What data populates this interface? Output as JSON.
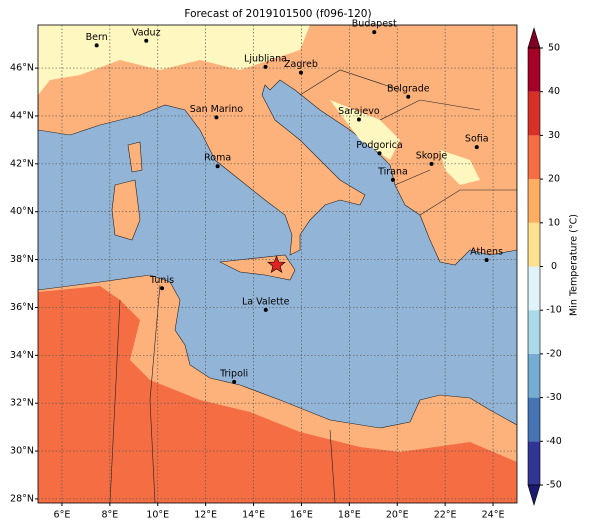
{
  "title": "Forecast of 2019101500 (f096-120)",
  "map": {
    "xlim": [
      5,
      25
    ],
    "ylim": [
      27.83,
      47.8
    ],
    "xticks": [
      {
        "value": 6,
        "label": "6°E"
      },
      {
        "value": 8,
        "label": "8°E"
      },
      {
        "value": 10,
        "label": "10°E"
      },
      {
        "value": 12,
        "label": "12°E"
      },
      {
        "value": 14,
        "label": "14°E"
      },
      {
        "value": 16,
        "label": "16°E"
      },
      {
        "value": 18,
        "label": "18°E"
      },
      {
        "value": 20,
        "label": "20°E"
      },
      {
        "value": 22,
        "label": "22°E"
      },
      {
        "value": 24,
        "label": "24°E"
      }
    ],
    "yticks": [
      {
        "value": 28,
        "label": "28°N"
      },
      {
        "value": 30,
        "label": "30°N"
      },
      {
        "value": 32,
        "label": "32°N"
      },
      {
        "value": 34,
        "label": "34°N"
      },
      {
        "value": 36,
        "label": "36°N"
      },
      {
        "value": 38,
        "label": "38°N"
      },
      {
        "value": 40,
        "label": "40°N"
      },
      {
        "value": 42,
        "label": "42°N"
      },
      {
        "value": 44,
        "label": "44°N"
      },
      {
        "value": 46,
        "label": "46°N"
      }
    ],
    "grid": true,
    "cities": [
      {
        "name": "Bern",
        "lon": 7.45,
        "lat": 46.95
      },
      {
        "name": "Vaduz",
        "lon": 9.52,
        "lat": 47.14
      },
      {
        "name": "Budapest",
        "lon": 19.04,
        "lat": 47.5
      },
      {
        "name": "Ljubljana",
        "lon": 14.5,
        "lat": 46.05
      },
      {
        "name": "Zagreb",
        "lon": 15.98,
        "lat": 45.81
      },
      {
        "name": "Belgrade",
        "lon": 20.46,
        "lat": 44.8
      },
      {
        "name": "San Marino",
        "lon": 12.45,
        "lat": 43.94
      },
      {
        "name": "Sarajevo",
        "lon": 18.4,
        "lat": 43.85
      },
      {
        "name": "Sofia",
        "lon": 23.32,
        "lat": 42.7
      },
      {
        "name": "Roma",
        "lon": 12.5,
        "lat": 41.9
      },
      {
        "name": "Podgorica",
        "lon": 19.26,
        "lat": 42.44
      },
      {
        "name": "Skopje",
        "lon": 21.43,
        "lat": 42.0
      },
      {
        "name": "Tirana",
        "lon": 19.82,
        "lat": 41.33
      },
      {
        "name": "Athens",
        "lon": 23.73,
        "lat": 37.98
      },
      {
        "name": "Tunis",
        "lon": 10.18,
        "lat": 36.8
      },
      {
        "name": "La Valette",
        "lon": 14.51,
        "lat": 35.9
      },
      {
        "name": "Tripoli",
        "lon": 13.19,
        "lat": 32.89
      }
    ],
    "marker": {
      "lon": 14.96,
      "lat": 37.77,
      "color": "#e32222"
    }
  },
  "colorbar": {
    "label": "Min Temperature (°C)",
    "ylim": [
      -50,
      50
    ],
    "yticks": [
      -50,
      -40,
      -30,
      -20,
      -10,
      0,
      10,
      20,
      30,
      40,
      50
    ],
    "colors": [
      "#313695",
      "#4575b4",
      "#74add1",
      "#abd9e9",
      "#e0f3f8",
      "#fee090",
      "#fdae61",
      "#f46d43",
      "#d73027",
      "#a50026"
    ],
    "under_color": "#1a1a6e",
    "over_color": "#800026"
  }
}
